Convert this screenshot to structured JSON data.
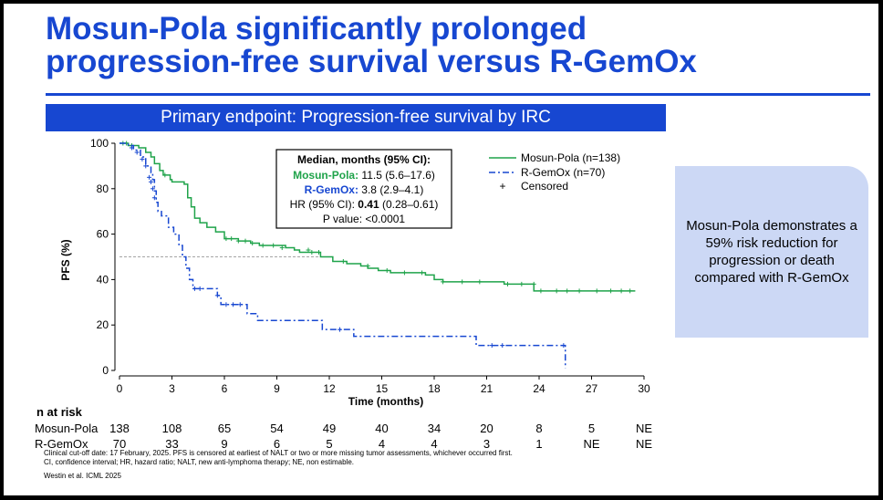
{
  "title_line1": "Mosun-Pola significantly prolonged",
  "title_line2": "progression-free survival versus R-GemOx",
  "banner": "Primary endpoint: Progression-free survival by IRC",
  "callout": "Mosun-Pola demonstrates a 59% risk reduction for progression or death compared with R-GemOx",
  "stats_box": {
    "heading": "Median, months (95% CI):",
    "line1_name": "Mosun-Pola:",
    "line1_value": " 11.5 (5.6–17.6)",
    "line2_name": "R-GemOx:",
    "line2_value": " 3.8 (2.9–4.1)",
    "line3_prefix": "HR (95% CI): ",
    "line3_hr": "0.41",
    "line3_suffix": " (0.28–0.61)",
    "line4": "P value: <0.0001"
  },
  "risk_table": {
    "title": "n at risk",
    "rows": [
      {
        "label": "Mosun-Pola",
        "values": [
          "138",
          "108",
          "65",
          "54",
          "49",
          "40",
          "34",
          "20",
          "8",
          "5",
          "NE"
        ]
      },
      {
        "label": "R-GemOx",
        "values": [
          "70",
          "33",
          "9",
          "6",
          "5",
          "4",
          "4",
          "3",
          "1",
          "NE",
          "NE"
        ]
      }
    ]
  },
  "footnotes": [
    "Clinical cut-off date: 17 February, 2025. PFS is censored at earliest of NALT or two or more missing tumor assessments, whichever occurred first.",
    "CI, confidence interval; HR, hazard ratio; NALT, new anti-lymphoma therapy; NE, non estimable.",
    "Westin et al. ICML 2025"
  ],
  "chart_data": {
    "type": "line",
    "subtype": "kaplan-meier step",
    "xlabel": "Time (months)",
    "ylabel": "PFS (%)",
    "xlim": [
      0,
      30
    ],
    "ylim": [
      0,
      100
    ],
    "xticks": [
      0,
      3,
      6,
      9,
      12,
      15,
      18,
      21,
      24,
      27,
      30
    ],
    "yticks": [
      0,
      20,
      40,
      60,
      80,
      100
    ],
    "reference_line_y": 50,
    "legend": [
      {
        "name": "Mosun-Pola (n=138)",
        "color": "#1fa34a",
        "style": "solid"
      },
      {
        "name": "R-GemOx (n=70)",
        "color": "#1747d1",
        "style": "dash-dot"
      },
      {
        "name": "Censored",
        "symbol": "+"
      }
    ],
    "legend_position": "top-right",
    "series": [
      {
        "name": "Mosun-Pola (n=138)",
        "color": "#1fa34a",
        "dash": "",
        "steps": [
          [
            0,
            100
          ],
          [
            0.5,
            99
          ],
          [
            1.1,
            98
          ],
          [
            1.5,
            96
          ],
          [
            1.8,
            94
          ],
          [
            2.0,
            91
          ],
          [
            2.3,
            88
          ],
          [
            2.5,
            86
          ],
          [
            2.9,
            84
          ],
          [
            3.0,
            83
          ],
          [
            3.7,
            82
          ],
          [
            3.9,
            76
          ],
          [
            4.1,
            72
          ],
          [
            4.3,
            67
          ],
          [
            4.6,
            65
          ],
          [
            5.0,
            63
          ],
          [
            5.5,
            61
          ],
          [
            6.0,
            58
          ],
          [
            6.8,
            57
          ],
          [
            7.5,
            56
          ],
          [
            8.0,
            55
          ],
          [
            9.5,
            54
          ],
          [
            10.0,
            53
          ],
          [
            10.3,
            52
          ],
          [
            11.5,
            50
          ],
          [
            12.2,
            48
          ],
          [
            13.0,
            47
          ],
          [
            13.8,
            46
          ],
          [
            14.2,
            45
          ],
          [
            14.8,
            44
          ],
          [
            15.5,
            43
          ],
          [
            17.5,
            42
          ],
          [
            18.0,
            40
          ],
          [
            18.5,
            39
          ],
          [
            21.5,
            39
          ],
          [
            22.0,
            38
          ],
          [
            23.7,
            35
          ],
          [
            29.5,
            35
          ]
        ],
        "censored": [
          [
            0.2,
            100
          ],
          [
            0.4,
            100
          ],
          [
            0.7,
            99
          ],
          [
            2.6,
            86
          ],
          [
            6.1,
            58
          ],
          [
            6.4,
            58
          ],
          [
            6.8,
            57
          ],
          [
            7.2,
            57
          ],
          [
            7.6,
            56
          ],
          [
            8.2,
            55
          ],
          [
            8.8,
            55
          ],
          [
            9.3,
            54
          ],
          [
            10.8,
            53
          ],
          [
            11.0,
            52
          ],
          [
            11.4,
            52
          ],
          [
            12.8,
            48
          ],
          [
            14.2,
            46
          ],
          [
            15.3,
            44
          ],
          [
            16.3,
            43
          ],
          [
            17.3,
            43
          ],
          [
            18.5,
            39
          ],
          [
            19.6,
            39
          ],
          [
            20.6,
            39
          ],
          [
            22.2,
            38
          ],
          [
            23.0,
            38
          ],
          [
            23.7,
            38
          ],
          [
            24.1,
            35
          ],
          [
            25.0,
            35
          ],
          [
            25.6,
            35
          ],
          [
            26.3,
            35
          ],
          [
            27.3,
            35
          ],
          [
            28.1,
            35
          ],
          [
            28.7,
            35
          ],
          [
            29.2,
            35
          ]
        ]
      },
      {
        "name": "R-GemOx (n=70)",
        "color": "#1747d1",
        "dash": "7,3,2,3",
        "steps": [
          [
            0,
            100
          ],
          [
            0.5,
            99
          ],
          [
            0.8,
            97
          ],
          [
            1.2,
            94
          ],
          [
            1.5,
            90
          ],
          [
            1.8,
            87
          ],
          [
            1.9,
            84
          ],
          [
            2.0,
            79
          ],
          [
            2.1,
            74
          ],
          [
            2.2,
            70
          ],
          [
            2.4,
            68
          ],
          [
            2.8,
            63
          ],
          [
            3.1,
            60
          ],
          [
            3.4,
            55
          ],
          [
            3.6,
            50
          ],
          [
            3.8,
            45
          ],
          [
            4.0,
            40
          ],
          [
            4.2,
            36
          ],
          [
            5.6,
            33
          ],
          [
            5.8,
            29
          ],
          [
            7.3,
            25
          ],
          [
            7.9,
            22
          ],
          [
            11.6,
            18
          ],
          [
            13.4,
            15
          ],
          [
            20.4,
            11
          ],
          [
            25.5,
            1
          ]
        ],
        "censored": [
          [
            0.7,
            98
          ],
          [
            1.0,
            96
          ],
          [
            1.3,
            93
          ],
          [
            1.5,
            90
          ],
          [
            1.7,
            85
          ],
          [
            1.8,
            83
          ],
          [
            1.9,
            80
          ],
          [
            2.0,
            76
          ],
          [
            4.3,
            36
          ],
          [
            4.6,
            36
          ],
          [
            5.6,
            33
          ],
          [
            6.1,
            29
          ],
          [
            6.5,
            29
          ],
          [
            6.9,
            29
          ],
          [
            12.6,
            18
          ],
          [
            21.3,
            11
          ],
          [
            21.9,
            11
          ],
          [
            25.4,
            11
          ]
        ]
      }
    ]
  }
}
